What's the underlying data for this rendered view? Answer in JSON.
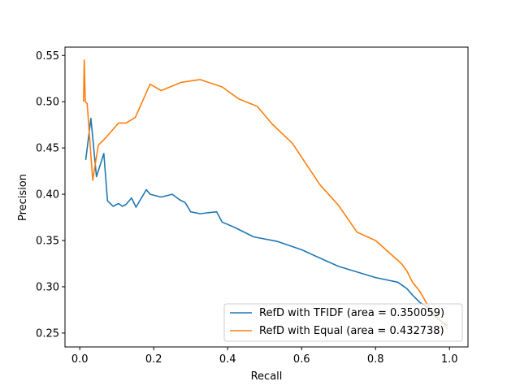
{
  "chart_data": {
    "type": "line",
    "xlabel": "Recall",
    "ylabel": "Precision",
    "xlim": [
      -0.04,
      1.05
    ],
    "ylim": [
      0.235,
      0.559
    ],
    "xticks": [
      0.0,
      0.2,
      0.4,
      0.6,
      0.8,
      1.0
    ],
    "xtick_labels": [
      "0.0",
      "0.2",
      "0.4",
      "0.6",
      "0.8",
      "1.0"
    ],
    "yticks": [
      0.25,
      0.3,
      0.35,
      0.4,
      0.45,
      0.5,
      0.55
    ],
    "ytick_labels": [
      "0.25",
      "0.30",
      "0.35",
      "0.40",
      "0.45",
      "0.50",
      "0.55"
    ],
    "grid": false,
    "legend_position": "lower right",
    "series": [
      {
        "name": "RefD with TFIDF (area = 0.350059)",
        "color": "#1f77b4",
        "x": [
          0.016,
          0.03,
          0.045,
          0.065,
          0.075,
          0.09,
          0.105,
          0.115,
          0.125,
          0.14,
          0.152,
          0.18,
          0.19,
          0.22,
          0.25,
          0.27,
          0.285,
          0.3,
          0.325,
          0.37,
          0.385,
          0.42,
          0.47,
          0.535,
          0.6,
          0.7,
          0.8,
          0.86,
          0.885,
          0.9,
          0.92,
          0.94,
          0.96,
          0.98,
          0.995
        ],
        "y": [
          0.437,
          0.482,
          0.419,
          0.444,
          0.393,
          0.387,
          0.39,
          0.387,
          0.389,
          0.396,
          0.386,
          0.405,
          0.4,
          0.397,
          0.4,
          0.394,
          0.391,
          0.381,
          0.379,
          0.381,
          0.37,
          0.364,
          0.354,
          0.349,
          0.34,
          0.322,
          0.31,
          0.305,
          0.298,
          0.291,
          0.283,
          0.278,
          0.268,
          0.262,
          0.258
        ]
      },
      {
        "name": "RefD with Equal (area = 0.432738)",
        "color": "#ff7f0e",
        "x": [
          0.01,
          0.012,
          0.015,
          0.02,
          0.035,
          0.05,
          0.07,
          0.105,
          0.125,
          0.15,
          0.19,
          0.22,
          0.275,
          0.325,
          0.385,
          0.43,
          0.48,
          0.52,
          0.575,
          0.65,
          0.7,
          0.75,
          0.8,
          0.87,
          0.885,
          0.9,
          0.92,
          0.94,
          0.96,
          0.98,
          0.995
        ],
        "y": [
          0.5,
          0.545,
          0.5,
          0.498,
          0.415,
          0.453,
          0.461,
          0.477,
          0.477,
          0.483,
          0.519,
          0.512,
          0.521,
          0.524,
          0.516,
          0.503,
          0.495,
          0.476,
          0.455,
          0.41,
          0.388,
          0.359,
          0.35,
          0.325,
          0.317,
          0.305,
          0.295,
          0.281,
          0.27,
          0.262,
          0.254
        ]
      }
    ]
  }
}
